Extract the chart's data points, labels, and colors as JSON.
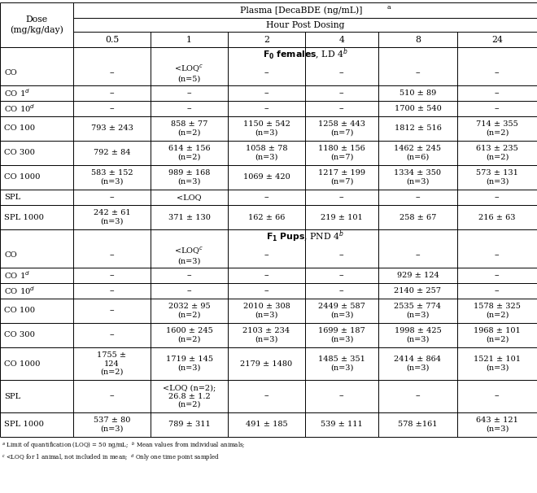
{
  "col_header": [
    "0.5",
    "1",
    "2",
    "4",
    "8",
    "24"
  ],
  "rows_section1": [
    [
      "CO",
      "--",
      "<LOQ$^c$\n(n=5)",
      "--",
      "--",
      "--",
      "--"
    ],
    [
      "CO 1$^d$",
      "--",
      "--",
      "--",
      "--",
      "510 ± 89",
      "--"
    ],
    [
      "CO 10$^d$",
      "--",
      "--",
      "--",
      "--",
      "1700 ± 540",
      "--"
    ],
    [
      "CO 100",
      "793 ± 243",
      "858 ± 77\n(n=2)",
      "1150 ± 542\n(n=3)",
      "1258 ± 443\n(n=7)",
      "1812 ± 516",
      "714 ± 355\n(n=2)"
    ],
    [
      "CO 300",
      "792 ± 84",
      "614 ± 156\n(n=2)",
      "1058 ± 78\n(n=3)",
      "1180 ± 156\n(n=7)",
      "1462 ± 245\n(n=6)",
      "613 ± 235\n(n=2)"
    ],
    [
      "CO 1000",
      "583 ± 152\n(n=3)",
      "989 ± 168\n(n=3)",
      "1069 ± 420",
      "1217 ± 199\n(n=7)",
      "1334 ± 350\n(n=3)",
      "573 ± 131\n(n=3)"
    ],
    [
      "SPL",
      "--",
      "<LOQ",
      "--",
      "--",
      "--",
      "--"
    ],
    [
      "SPL 1000",
      "242 ± 61\n(n=3)",
      "371 ± 130",
      "162 ± 66",
      "219 ± 101",
      "258 ± 67",
      "216 ± 63"
    ]
  ],
  "rows_section2": [
    [
      "CO",
      "--",
      "<LOQ$^c$\n(n=3)",
      "--",
      "--",
      "--",
      "--"
    ],
    [
      "CO 1$^d$",
      "--",
      "--",
      "--",
      "--",
      "929 ± 124",
      "--"
    ],
    [
      "CO 10$^d$",
      "--",
      "--",
      "--",
      "--",
      "2140 ± 257",
      "--"
    ],
    [
      "CO 100",
      "--",
      "2032 ± 95\n(n=2)",
      "2010 ± 308\n(n=3)",
      "2449 ± 587\n(n=3)",
      "2535 ± 774\n(n=3)",
      "1578 ± 325\n(n=2)"
    ],
    [
      "CO 300",
      "--",
      "1600 ± 245\n(n=2)",
      "2103 ± 234\n(n=3)",
      "1699 ± 187\n(n=3)",
      "1998 ± 425\n(n=3)",
      "1968 ± 101\n(n=2)"
    ],
    [
      "CO 1000",
      "1755 ±\n124\n(n=2)",
      "1719 ± 145\n(n=3)",
      "2179 ± 1480",
      "1485 ± 351\n(n=3)",
      "2414 ± 864\n(n=3)",
      "1521 ± 101\n(n=3)"
    ],
    [
      "SPL",
      "--",
      "<LOQ (n=2);\n26.8 ± 1.2\n(n=2)",
      "--",
      "--",
      "--",
      "--"
    ],
    [
      "SPL 1000",
      "537 ± 80\n(n=3)",
      "789 ± 311",
      "491 ± 185",
      "539 ± 111",
      "578 ±161",
      "643 ± 121\n(n=3)"
    ]
  ],
  "footnote": "$^a$ Limit of quantification (LOQ) = 50 ng/mL;  $^b$ Mean values from individual animals;  $^c$ <LOQ for 1 animal, not included in mean;  $^d$ Only one time point sampled"
}
